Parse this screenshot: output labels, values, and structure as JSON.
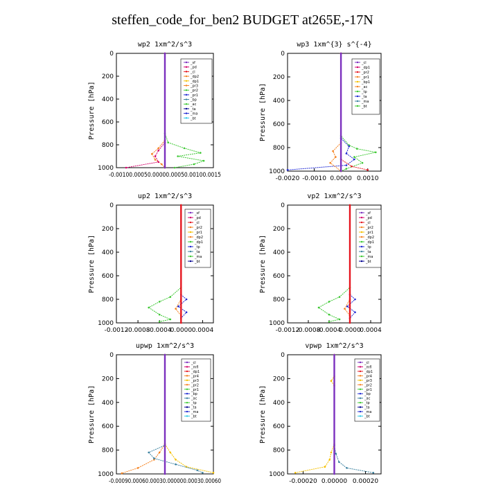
{
  "figure": {
    "title": "steffen_code_for_ben2  BUDGET at265E,-17N"
  },
  "colors": {
    "purple": "#7b2fbe",
    "magenta": "#d4006a",
    "red": "#e6141e",
    "orange": "#f58220",
    "gold": "#f5c000",
    "green": "#3cc832",
    "blue": "#1e28d2",
    "darkblue": "#000090",
    "teal": "#3c82a0",
    "cyan": "#28c8e6",
    "black": "#000000"
  },
  "chart_data": [
    {
      "type": "line",
      "title": "wp2  1xm^2/s^3",
      "ylabel": "Pressure [hPa]",
      "xlim": [
        -0.0015,
        0.0015
      ],
      "ylim": [
        1000,
        0
      ],
      "xtick_text": "-0.00100.00050.00000.00050.00100.0015",
      "yticks": [
        0,
        200,
        400,
        600,
        800,
        1000
      ],
      "legend": {
        "placement": "top-right",
        "entries": [
          "sf",
          "pd",
          "cl",
          "dp2",
          "dp1",
          "pr3",
          "pr2",
          "pr1",
          "bp",
          "ac",
          "ta",
          "ma",
          "bt"
        ]
      },
      "series": [
        {
          "name": "ac",
          "color": "green",
          "points": [
            [
              0,
              0
            ],
            [
              0,
              700
            ],
            [
              0.0001,
              780
            ],
            [
              0.0006,
              830
            ],
            [
              0.0011,
              870
            ],
            [
              0.0004,
              900
            ],
            [
              0.0012,
              940
            ],
            [
              0.0009,
              970
            ],
            [
              0.0003,
              1000
            ]
          ]
        },
        {
          "name": "pr1",
          "color": "orange",
          "points": [
            [
              0,
              0
            ],
            [
              0,
              760
            ],
            [
              -0.0002,
              830
            ],
            [
              -0.0004,
              880
            ],
            [
              -0.0003,
              930
            ],
            [
              -0.0001,
              970
            ],
            [
              0,
              1000
            ]
          ]
        },
        {
          "name": "dp1",
          "color": "magenta",
          "points": [
            [
              0,
              0
            ],
            [
              0,
              780
            ],
            [
              -0.0002,
              850
            ],
            [
              -0.0003,
              900
            ],
            [
              -0.0002,
              950
            ],
            [
              -0.0012,
              1000
            ]
          ]
        },
        {
          "name": "bt",
          "color": "purple",
          "points": [
            [
              0,
              0
            ],
            [
              0,
              1000
            ]
          ]
        }
      ]
    },
    {
      "type": "line",
      "title": "wp3  1xm^{3} s^{-4}",
      "ylabel": "Pressure [hPa]",
      "xlim": [
        -0.002,
        0.0015
      ],
      "ylim": [
        1000,
        0
      ],
      "xticks": [
        -0.002,
        -0.001,
        0,
        0.001
      ],
      "xtick_labels": [
        "-0.0020",
        "-0.0010",
        "0.0000",
        "0.0010"
      ],
      "yticks": [
        0,
        200,
        400,
        600,
        800,
        1000
      ],
      "legend": {
        "placement": "top-right",
        "entries": [
          "cl",
          "dp1",
          "pr2",
          "pr1",
          "bp1",
          "ac",
          "tp",
          "ta",
          "ma",
          "bt"
        ]
      },
      "series": [
        {
          "name": "ac",
          "color": "green",
          "points": [
            [
              0,
              0
            ],
            [
              0,
              700
            ],
            [
              0.0003,
              780
            ],
            [
              0.0006,
              810
            ],
            [
              0.0013,
              840
            ],
            [
              0.0005,
              880
            ],
            [
              0.0008,
              930
            ],
            [
              0.0002,
              980
            ],
            [
              0,
              1000
            ]
          ]
        },
        {
          "name": "tp",
          "color": "blue",
          "points": [
            [
              0,
              0
            ],
            [
              0,
              720
            ],
            [
              0.0003,
              790
            ],
            [
              0.0002,
              850
            ],
            [
              0.0005,
              900
            ],
            [
              0.0002,
              950
            ],
            [
              -0.002,
              990
            ]
          ]
        },
        {
          "name": "pr1",
          "color": "orange",
          "points": [
            [
              0,
              0
            ],
            [
              0,
              760
            ],
            [
              -0.0003,
              830
            ],
            [
              -0.0002,
              880
            ],
            [
              -0.0004,
              930
            ],
            [
              0,
              1000
            ]
          ]
        },
        {
          "name": "cl",
          "color": "red",
          "points": [
            [
              0,
              0
            ],
            [
              0,
              900
            ],
            [
              0.0004,
              960
            ],
            [
              0.001,
              990
            ]
          ]
        },
        {
          "name": "bt",
          "color": "purple",
          "points": [
            [
              0,
              0
            ],
            [
              0,
              1000
            ]
          ]
        }
      ]
    },
    {
      "type": "line",
      "title": "up2  1xm^2/s^3",
      "ylabel": "Pressure [hPa]",
      "xlim": [
        -0.0012,
        0.0006
      ],
      "ylim": [
        1000,
        0
      ],
      "xticks": [
        -0.0012,
        -0.0008,
        -0.0004,
        0,
        0.0004
      ],
      "xtick_labels": [
        "-0.0012",
        "-0.0008",
        "-0.0004",
        "0.0000",
        "0.0004"
      ],
      "yticks": [
        0,
        200,
        400,
        600,
        800,
        1000
      ],
      "legend": {
        "placement": "top-right",
        "entries": [
          "sf",
          "pd",
          "cl",
          "pr2",
          "pr1",
          "dp2",
          "dp1",
          "tp",
          "ta",
          "ma",
          "bt"
        ]
      },
      "series": [
        {
          "name": "dp1",
          "color": "green",
          "points": [
            [
              0,
              0
            ],
            [
              0,
              700
            ],
            [
              -0.0002,
              780
            ],
            [
              -0.0004,
              820
            ],
            [
              -0.0006,
              870
            ],
            [
              -0.0004,
              930
            ],
            [
              -0.0002,
              970
            ],
            [
              -0.0004,
              990
            ]
          ]
        },
        {
          "name": "ta",
          "color": "blue",
          "points": [
            [
              0,
              0
            ],
            [
              0,
              760
            ],
            [
              0.0001,
              800
            ],
            [
              -5e-05,
              860
            ],
            [
              0.0001,
              910
            ],
            [
              0,
              960
            ]
          ]
        },
        {
          "name": "pr1",
          "color": "orange",
          "points": [
            [
              0,
              0
            ],
            [
              0,
              800
            ],
            [
              -0.0001,
              880
            ],
            [
              0,
              940
            ]
          ]
        },
        {
          "name": "bt",
          "color": "red",
          "points": [
            [
              0,
              0
            ],
            [
              0,
              1000
            ]
          ]
        }
      ]
    },
    {
      "type": "line",
      "title": "vp2  1xm^2/s^3",
      "ylabel": "Pressure [hPa]",
      "xlim": [
        -0.0012,
        0.0006
      ],
      "ylim": [
        1000,
        0
      ],
      "xticks": [
        -0.0012,
        -0.0008,
        -0.0004,
        0,
        0.0004
      ],
      "xtick_labels": [
        "-0.0012",
        "-0.0008",
        "-0.0004",
        "0.0000",
        "0.0004"
      ],
      "yticks": [
        0,
        200,
        400,
        600,
        800,
        1000
      ],
      "legend": {
        "placement": "top-right",
        "entries": [
          "sf",
          "pd",
          "cl",
          "pr2",
          "pr1",
          "dp2",
          "dp1",
          "tp",
          "ta",
          "ma",
          "bt"
        ]
      },
      "series": [
        {
          "name": "dp1",
          "color": "green",
          "points": [
            [
              0,
              0
            ],
            [
              0,
              700
            ],
            [
              -0.0002,
              780
            ],
            [
              -0.0004,
              820
            ],
            [
              -0.0006,
              870
            ],
            [
              -0.0004,
              930
            ],
            [
              -0.0002,
              970
            ],
            [
              -0.0004,
              990
            ]
          ]
        },
        {
          "name": "ta",
          "color": "blue",
          "points": [
            [
              0,
              0
            ],
            [
              0,
              760
            ],
            [
              0.0001,
              800
            ],
            [
              -5e-05,
              860
            ],
            [
              0.0001,
              910
            ],
            [
              0,
              960
            ]
          ]
        },
        {
          "name": "pr1",
          "color": "orange",
          "points": [
            [
              0,
              0
            ],
            [
              0,
              800
            ],
            [
              -0.0001,
              880
            ],
            [
              0,
              940
            ]
          ]
        },
        {
          "name": "bt",
          "color": "red",
          "points": [
            [
              0,
              0
            ],
            [
              0,
              1000
            ]
          ]
        }
      ]
    },
    {
      "type": "line",
      "title": "upwp  1xm^2/s^3",
      "ylabel": "Pressure [hPa]",
      "xlim": [
        -0.0009,
        0.0009
      ],
      "ylim": [
        1000,
        0
      ],
      "xtick_text": "-0.00090.00060.00030.000000.00030.00060",
      "yticks": [
        0,
        200,
        400,
        600,
        800,
        1000
      ],
      "legend": {
        "placement": "top-right",
        "entries": [
          "cl",
          "mfl",
          "dp1",
          "pr4",
          "pr3",
          "pr2",
          "pr1",
          "bp",
          "ac",
          "tp",
          "ta",
          "ma",
          "bt"
        ]
      },
      "series": [
        {
          "name": "pr1",
          "color": "gold",
          "points": [
            [
              0,
              0
            ],
            [
              0,
              750
            ],
            [
              0.0001,
              820
            ],
            [
              0.0002,
              880
            ],
            [
              0.0004,
              940
            ],
            [
              0.0009,
              990
            ]
          ]
        },
        {
          "name": "pr2",
          "color": "orange",
          "points": [
            [
              0,
              0
            ],
            [
              0,
              750
            ],
            [
              -0.0001,
              820
            ],
            [
              -0.0002,
              880
            ],
            [
              -0.0005,
              950
            ],
            [
              -0.0008,
              995
            ]
          ]
        },
        {
          "name": "tp",
          "color": "teal",
          "points": [
            [
              0,
              0
            ],
            [
              0,
              760
            ],
            [
              -0.0003,
              820
            ],
            [
              -0.0002,
              870
            ],
            [
              0.0002,
              920
            ],
            [
              0.0006,
              970
            ],
            [
              0.0007,
              990
            ]
          ]
        },
        {
          "name": "bt",
          "color": "purple",
          "points": [
            [
              0,
              0
            ],
            [
              0,
              1000
            ]
          ]
        }
      ]
    },
    {
      "type": "line",
      "title": "vpwp  1xm^2/s^3",
      "ylabel": "Pressure [hPa]",
      "xlim": [
        -0.0003,
        0.0003
      ],
      "ylim": [
        1000,
        0
      ],
      "xticks": [
        -0.0002,
        0,
        0.0002
      ],
      "xtick_labels": [
        "-0.00020",
        "0.00000",
        "0.00020"
      ],
      "yticks": [
        0,
        200,
        400,
        600,
        800,
        1000
      ],
      "legend": {
        "placement": "top-right",
        "entries": [
          "cl",
          "mfl",
          "dp1",
          "pr4",
          "pr3",
          "pr2",
          "pr1",
          "bp",
          "ac",
          "tp",
          "ta",
          "ma",
          "bt"
        ]
      },
      "series": [
        {
          "name": "pr1",
          "color": "gold",
          "points": [
            [
              0,
              0
            ],
            [
              0,
              750
            ],
            [
              -2e-05,
              820
            ],
            [
              -3e-05,
              880
            ],
            [
              -6e-05,
              940
            ],
            [
              -0.00025,
              990
            ]
          ]
        },
        {
          "name": "tp",
          "color": "teal",
          "points": [
            [
              0,
              0
            ],
            [
              0,
              760
            ],
            [
              1e-05,
              830
            ],
            [
              3e-05,
              900
            ],
            [
              8e-05,
              950
            ],
            [
              0.00025,
              990
            ]
          ]
        },
        {
          "name": "pr2",
          "color": "gold",
          "points": [
            [
              0,
              0
            ],
            [
              0,
              180
            ],
            [
              -2e-05,
              220
            ],
            [
              0,
              260
            ]
          ]
        },
        {
          "name": "bt",
          "color": "purple",
          "points": [
            [
              0,
              0
            ],
            [
              0,
              1000
            ]
          ]
        }
      ]
    }
  ]
}
